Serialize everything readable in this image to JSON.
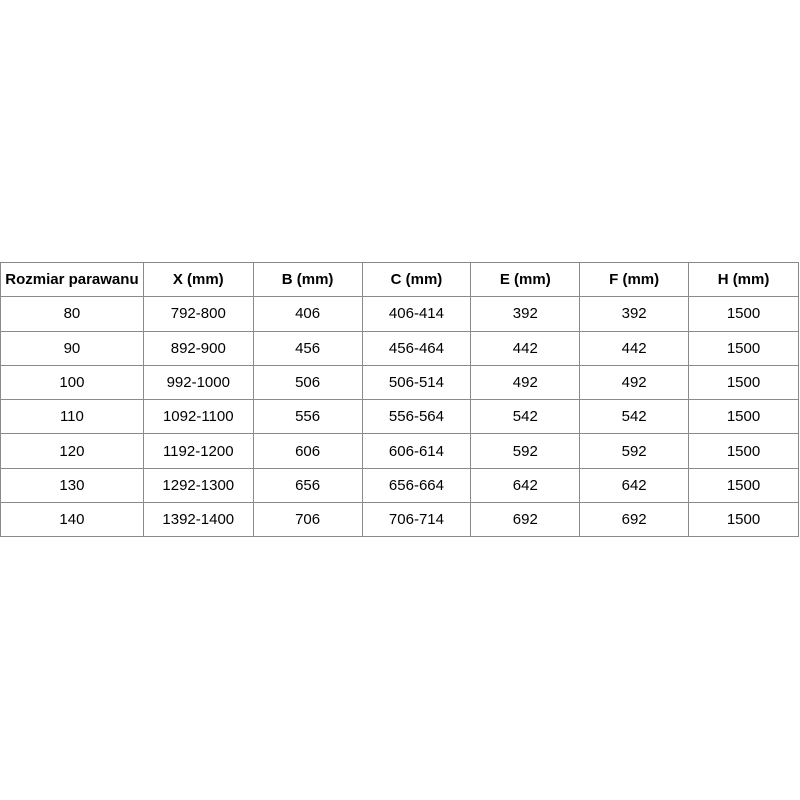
{
  "table": {
    "headers": [
      "Rozmiar parawanu",
      "X (mm)",
      "B (mm)",
      "C (mm)",
      "E (mm)",
      "F (mm)",
      "H (mm)"
    ],
    "rows": [
      [
        "80",
        "792-800",
        "406",
        "406-414",
        "392",
        "392",
        "1500"
      ],
      [
        "90",
        "892-900",
        "456",
        "456-464",
        "442",
        "442",
        "1500"
      ],
      [
        "100",
        "992-1000",
        "506",
        "506-514",
        "492",
        "492",
        "1500"
      ],
      [
        "110",
        "1092-1100",
        "556",
        "556-564",
        "542",
        "542",
        "1500"
      ],
      [
        "120",
        "1192-1200",
        "606",
        "606-614",
        "592",
        "592",
        "1500"
      ],
      [
        "130",
        "1292-1300",
        "656",
        "656-664",
        "642",
        "642",
        "1500"
      ],
      [
        "140",
        "1392-1400",
        "706",
        "706-714",
        "692",
        "692",
        "1500"
      ]
    ]
  }
}
